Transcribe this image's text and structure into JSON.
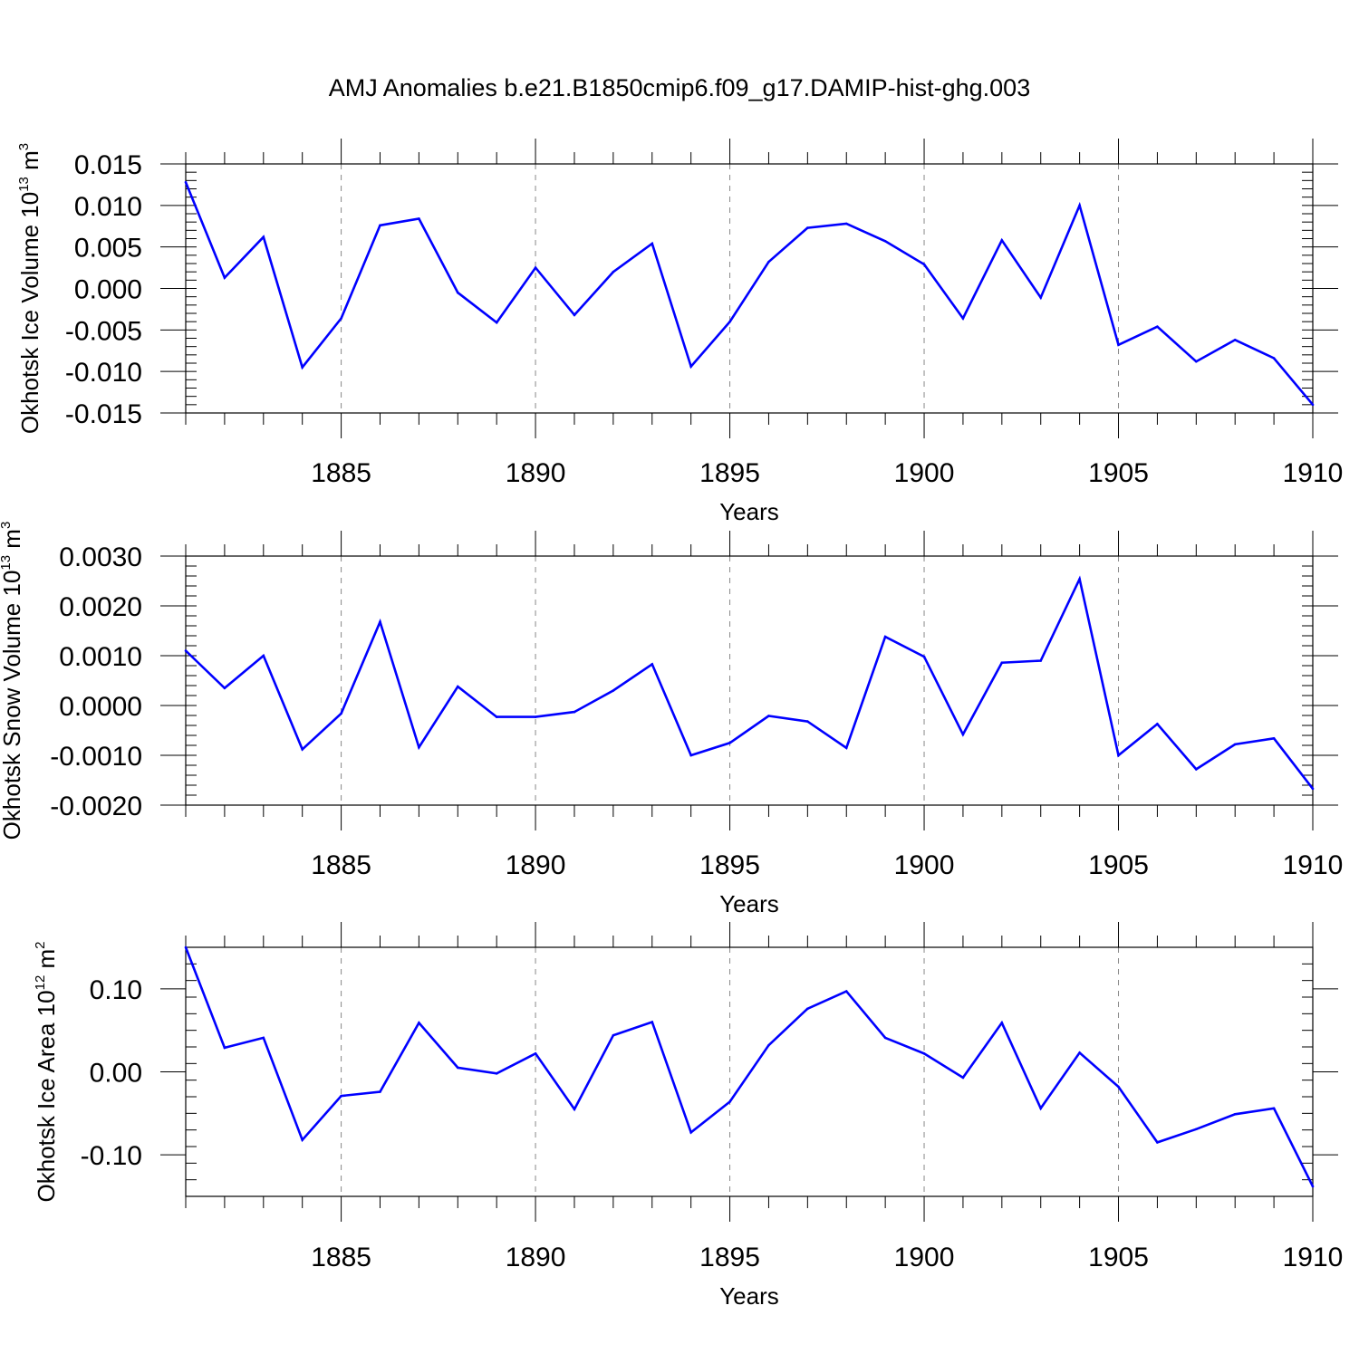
{
  "figure": {
    "title": "AMJ Anomalies b.e21.B1850cmip6.f09_g17.DAMIP-hist-ghg.003"
  },
  "colors": {
    "series_line": "#0000ff",
    "axis": "#000000",
    "gridline": "#888888"
  },
  "chart_data": [
    {
      "type": "line",
      "ylabel": {
        "text": "Okhotsk Ice Volume 10",
        "exponent": "13",
        "unit": " m",
        "unit_exponent": "3"
      },
      "xlabel": "Years",
      "xlim": [
        1881,
        1910
      ],
      "ylim": [
        -0.015,
        0.015
      ],
      "x_ticks": [
        1885,
        1890,
        1895,
        1900,
        1905,
        1910
      ],
      "x_tick_labels": [
        "1885",
        "1890",
        "1895",
        "1900",
        "1905",
        "1910"
      ],
      "y_ticks": [
        -0.015,
        -0.01,
        -0.005,
        0,
        0.005,
        0.01,
        0.015
      ],
      "y_tick_labels": [
        "-0.015",
        "-0.010",
        "-0.005",
        "0.000",
        "0.005",
        "0.010",
        "0.015"
      ],
      "y_minor_step": 0.001,
      "grid": "dashed vertical lines at labeled years",
      "x": [
        1881,
        1882,
        1883,
        1884,
        1885,
        1886,
        1887,
        1888,
        1889,
        1890,
        1891,
        1892,
        1893,
        1894,
        1895,
        1896,
        1897,
        1898,
        1899,
        1900,
        1901,
        1902,
        1903,
        1904,
        1905,
        1906,
        1907,
        1908,
        1909,
        1910
      ],
      "y": [
        0.0128,
        0.0013,
        0.0062,
        -0.0095,
        -0.0036,
        0.0076,
        0.0084,
        -0.0005,
        -0.0041,
        0.0025,
        -0.0032,
        0.002,
        0.0054,
        -0.0094,
        -0.004,
        0.0032,
        0.0073,
        0.0078,
        0.0057,
        0.0029,
        -0.0036,
        0.0058,
        -0.0011,
        0.01,
        -0.0068,
        -0.0046,
        -0.0088,
        -0.0062,
        -0.0084,
        -0.014
      ]
    },
    {
      "type": "line",
      "ylabel": {
        "text": "Okhotsk Snow Volume 10",
        "exponent": "13",
        "unit": " m",
        "unit_exponent": "3"
      },
      "xlabel": "Years",
      "xlim": [
        1881,
        1910
      ],
      "ylim": [
        -0.002,
        0.003
      ],
      "x_ticks": [
        1885,
        1890,
        1895,
        1900,
        1905,
        1910
      ],
      "x_tick_labels": [
        "1885",
        "1890",
        "1895",
        "1900",
        "1905",
        "1910"
      ],
      "y_ticks": [
        -0.002,
        -0.001,
        0,
        0.001,
        0.002,
        0.003
      ],
      "y_tick_labels": [
        "-0.0020",
        "-0.0010",
        "0.0000",
        "0.0010",
        "0.0020",
        "0.0030"
      ],
      "y_minor_step": 0.0002,
      "grid": "dashed vertical lines at labeled years",
      "x": [
        1881,
        1882,
        1883,
        1884,
        1885,
        1886,
        1887,
        1888,
        1889,
        1890,
        1891,
        1892,
        1893,
        1894,
        1895,
        1896,
        1897,
        1898,
        1899,
        1900,
        1901,
        1902,
        1903,
        1904,
        1905,
        1906,
        1907,
        1908,
        1909,
        1910
      ],
      "y": [
        0.0011,
        0.00035,
        0.001,
        -0.00088,
        -0.00016,
        0.00168,
        -0.00084,
        0.00038,
        -0.00023,
        -0.00023,
        -0.00013,
        0.0003,
        0.00083,
        -0.001,
        -0.00075,
        -0.00021,
        -0.00032,
        -0.00085,
        0.00138,
        0.00098,
        -0.00058,
        0.00086,
        0.0009,
        0.00254,
        -0.001,
        -0.00037,
        -0.00128,
        -0.00078,
        -0.00066,
        -0.00167
      ]
    },
    {
      "type": "line",
      "ylabel": {
        "text": "Okhotsk Ice Area 10",
        "exponent": "12",
        "unit": " m",
        "unit_exponent": "2"
      },
      "xlabel": "Years",
      "xlim": [
        1881,
        1910
      ],
      "ylim": [
        -0.15,
        0.15
      ],
      "x_ticks": [
        1885,
        1890,
        1895,
        1900,
        1905,
        1910
      ],
      "x_tick_labels": [
        "1885",
        "1890",
        "1895",
        "1900",
        "1905",
        "1910"
      ],
      "y_ticks": [
        -0.1,
        0,
        0.1
      ],
      "y_tick_labels": [
        "-0.10",
        "0.00",
        "0.10"
      ],
      "y_minor_step": 0.02,
      "grid": "dashed vertical lines at labeled years",
      "x": [
        1881,
        1882,
        1883,
        1884,
        1885,
        1886,
        1887,
        1888,
        1889,
        1890,
        1891,
        1892,
        1893,
        1894,
        1895,
        1896,
        1897,
        1898,
        1899,
        1900,
        1901,
        1902,
        1903,
        1904,
        1905,
        1906,
        1907,
        1908,
        1909,
        1910
      ],
      "y": [
        0.15,
        0.029,
        0.041,
        -0.082,
        -0.029,
        -0.024,
        0.059,
        0.005,
        -0.002,
        0.022,
        -0.045,
        0.044,
        0.06,
        -0.073,
        -0.036,
        0.032,
        0.076,
        0.097,
        0.041,
        0.022,
        -0.007,
        0.059,
        -0.044,
        0.023,
        -0.018,
        -0.085,
        -0.069,
        -0.051,
        -0.044,
        -0.138
      ]
    }
  ]
}
